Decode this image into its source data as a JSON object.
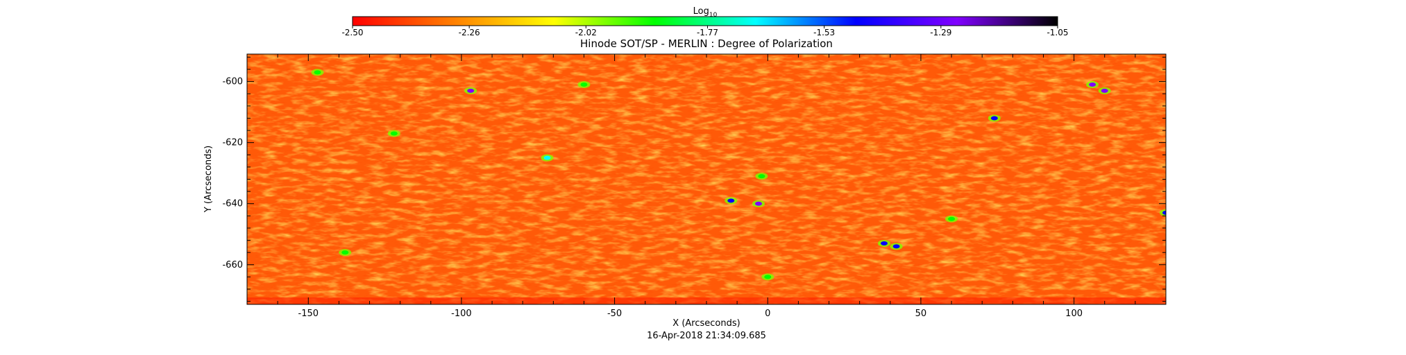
{
  "chart_data": {
    "type": "heatmap",
    "title": "Hinode SOT/SP - MERLIN : Degree of Polarization",
    "xlabel": "X (Arcseconds)",
    "ylabel": "Y (Arcseconds)",
    "timestamp": "16-Apr-2018 21:34:09.685",
    "colorbar": {
      "label_main": "Log",
      "label_sub": "10",
      "range": [
        -2.5,
        -1.05
      ],
      "tick_labels": [
        "-2.50",
        "-2.26",
        "-2.02",
        "-1.77",
        "-1.53",
        "-1.29",
        "-1.05"
      ],
      "colors": [
        "#ff0000",
        "#ff7f00",
        "#ffff00",
        "#00ff00",
        "#00ffff",
        "#0000ff",
        "#8000ff",
        "#000000"
      ]
    },
    "xlim": [
      -170,
      130
    ],
    "ylim": [
      -673,
      -591
    ],
    "x_major_ticks": [
      -150,
      -100,
      -50,
      0,
      50,
      100
    ],
    "y_major_ticks": [
      -600,
      -620,
      -640,
      -660
    ],
    "x_tick_labels": [
      "-150",
      "-100",
      "-50",
      "0",
      "50",
      "100"
    ],
    "y_tick_labels": [
      "-600",
      "-620",
      "-640",
      "-660"
    ],
    "grid": false,
    "field_description": "Mostly red-orange background (log DoP ~ -2.45) with yellow network lanes and sparse green/blue/purple magnetic patches",
    "features": [
      {
        "x": -97,
        "y": -603,
        "value": -1.3
      },
      {
        "x": -72,
        "y": -625,
        "value": -1.7
      },
      {
        "x": -12,
        "y": -639,
        "value": -1.4
      },
      {
        "x": -3,
        "y": -640,
        "value": -1.3
      },
      {
        "x": 38,
        "y": -653,
        "value": -1.4
      },
      {
        "x": 42,
        "y": -654,
        "value": -1.45
      },
      {
        "x": 74,
        "y": -612,
        "value": -1.4
      },
      {
        "x": 106,
        "y": -601,
        "value": -1.3
      },
      {
        "x": 110,
        "y": -603,
        "value": -1.32
      },
      {
        "x": 130,
        "y": -643,
        "value": -1.5
      },
      {
        "x": -60,
        "y": -601,
        "value": -1.85
      },
      {
        "x": -122,
        "y": -617,
        "value": -1.85
      },
      {
        "x": -147,
        "y": -597,
        "value": -1.9
      },
      {
        "x": -138,
        "y": -656,
        "value": -1.85
      },
      {
        "x": 60,
        "y": -645,
        "value": -1.85
      },
      {
        "x": -2,
        "y": -631,
        "value": -1.8
      },
      {
        "x": 0,
        "y": -664,
        "value": -1.9
      }
    ]
  }
}
